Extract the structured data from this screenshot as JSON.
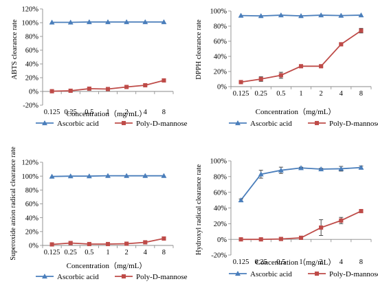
{
  "chart_data": [
    {
      "type": "line",
      "title": "",
      "xlabel": "Concentration（mg/mL）",
      "ylabel": "ABTS clearance rate",
      "categories": [
        "0.125",
        "0.25",
        "0.5",
        "1",
        "2",
        "4",
        "8"
      ],
      "ylim": [
        -20,
        120
      ],
      "yticks": [
        "-20%",
        "0%",
        "20%",
        "40%",
        "60%",
        "80%",
        "100%",
        "120%"
      ],
      "legend_position": "bottom",
      "grid": false,
      "series": [
        {
          "name": "Ascorbic acid",
          "color": "#4a7ebb",
          "marker": "triangle",
          "values": [
            100.5,
            100.5,
            101,
            101,
            101,
            101,
            101
          ],
          "errors": [
            0,
            0,
            0,
            0,
            0,
            0,
            0
          ]
        },
        {
          "name": "Poly-D-mannose",
          "color": "#be4b48",
          "marker": "square",
          "values": [
            0.3,
            1,
            4,
            3.5,
            6.5,
            9,
            16
          ],
          "errors": [
            0,
            0,
            0,
            0,
            0,
            0,
            0
          ]
        }
      ]
    },
    {
      "type": "line",
      "title": "",
      "xlabel": "Concentration（mg/mL）",
      "ylabel": "DPPH clearance rate",
      "categories": [
        "0.125",
        "0.25",
        "0.5",
        "1",
        "2",
        "4",
        "8"
      ],
      "ylim": [
        0,
        100
      ],
      "yticks": [
        "0%",
        "20%",
        "40%",
        "60%",
        "80%",
        "100%"
      ],
      "legend_position": "bottom",
      "grid": false,
      "series": [
        {
          "name": "Ascorbic acid",
          "color": "#4a7ebb",
          "marker": "triangle",
          "values": [
            94,
            93.5,
            94.5,
            93.5,
            94.5,
            94,
            94.5
          ],
          "errors": [
            0,
            0,
            0,
            0,
            0,
            0,
            0
          ]
        },
        {
          "name": "Poly-D-mannose",
          "color": "#be4b48",
          "marker": "square",
          "values": [
            6,
            10,
            15,
            27,
            27,
            56,
            74
          ],
          "errors": [
            0,
            3,
            4,
            0,
            1,
            0,
            3
          ]
        }
      ]
    },
    {
      "type": "line",
      "title": "",
      "xlabel": "Concentration（mg/mL）",
      "ylabel": "Superoxide anion radical  clearance rate",
      "categories": [
        "0.125",
        "0.25",
        "0.5",
        "1",
        "2",
        "4",
        "8"
      ],
      "ylim": [
        0,
        120
      ],
      "yticks": [
        "0%",
        "20%",
        "40%",
        "60%",
        "80%",
        "100%",
        "120%"
      ],
      "legend_position": "bottom",
      "grid": false,
      "series": [
        {
          "name": "Ascorbic acid",
          "color": "#4a7ebb",
          "marker": "triangle",
          "values": [
            99.5,
            100,
            100,
            100.5,
            100.5,
            100.5,
            100.5
          ],
          "errors": [
            0,
            0,
            0,
            0,
            0,
            0,
            0
          ]
        },
        {
          "name": "Poly-D-mannose",
          "color": "#be4b48",
          "marker": "square",
          "values": [
            1.5,
            3.5,
            2,
            2,
            2.5,
            4.5,
            10
          ],
          "errors": [
            0,
            0,
            0,
            0,
            0,
            0,
            2
          ]
        }
      ]
    },
    {
      "type": "line",
      "title": "",
      "xlabel": "Concentration（mg/mL）",
      "ylabel": "Hydroxyl radical clearance rate",
      "categories": [
        "0.125",
        "0.25",
        "0.5",
        "1",
        "2",
        "4",
        "8"
      ],
      "ylim": [
        -20,
        100
      ],
      "yticks": [
        "-20%",
        "0%",
        "20%",
        "40%",
        "60%",
        "80%",
        "100%"
      ],
      "legend_position": "bottom",
      "grid": false,
      "series": [
        {
          "name": "Ascorbic acid",
          "color": "#4a7ebb",
          "marker": "triangle",
          "values": [
            50,
            83,
            88,
            91,
            89.5,
            90,
            91.5
          ],
          "errors": [
            1.5,
            5,
            4,
            1,
            1,
            3,
            2
          ]
        },
        {
          "name": "Poly-D-mannose",
          "color": "#be4b48",
          "marker": "square",
          "values": [
            0,
            0,
            0.5,
            2,
            15,
            24,
            36
          ],
          "errors": [
            0,
            0,
            2,
            2,
            10,
            4,
            1.5
          ]
        }
      ]
    }
  ]
}
